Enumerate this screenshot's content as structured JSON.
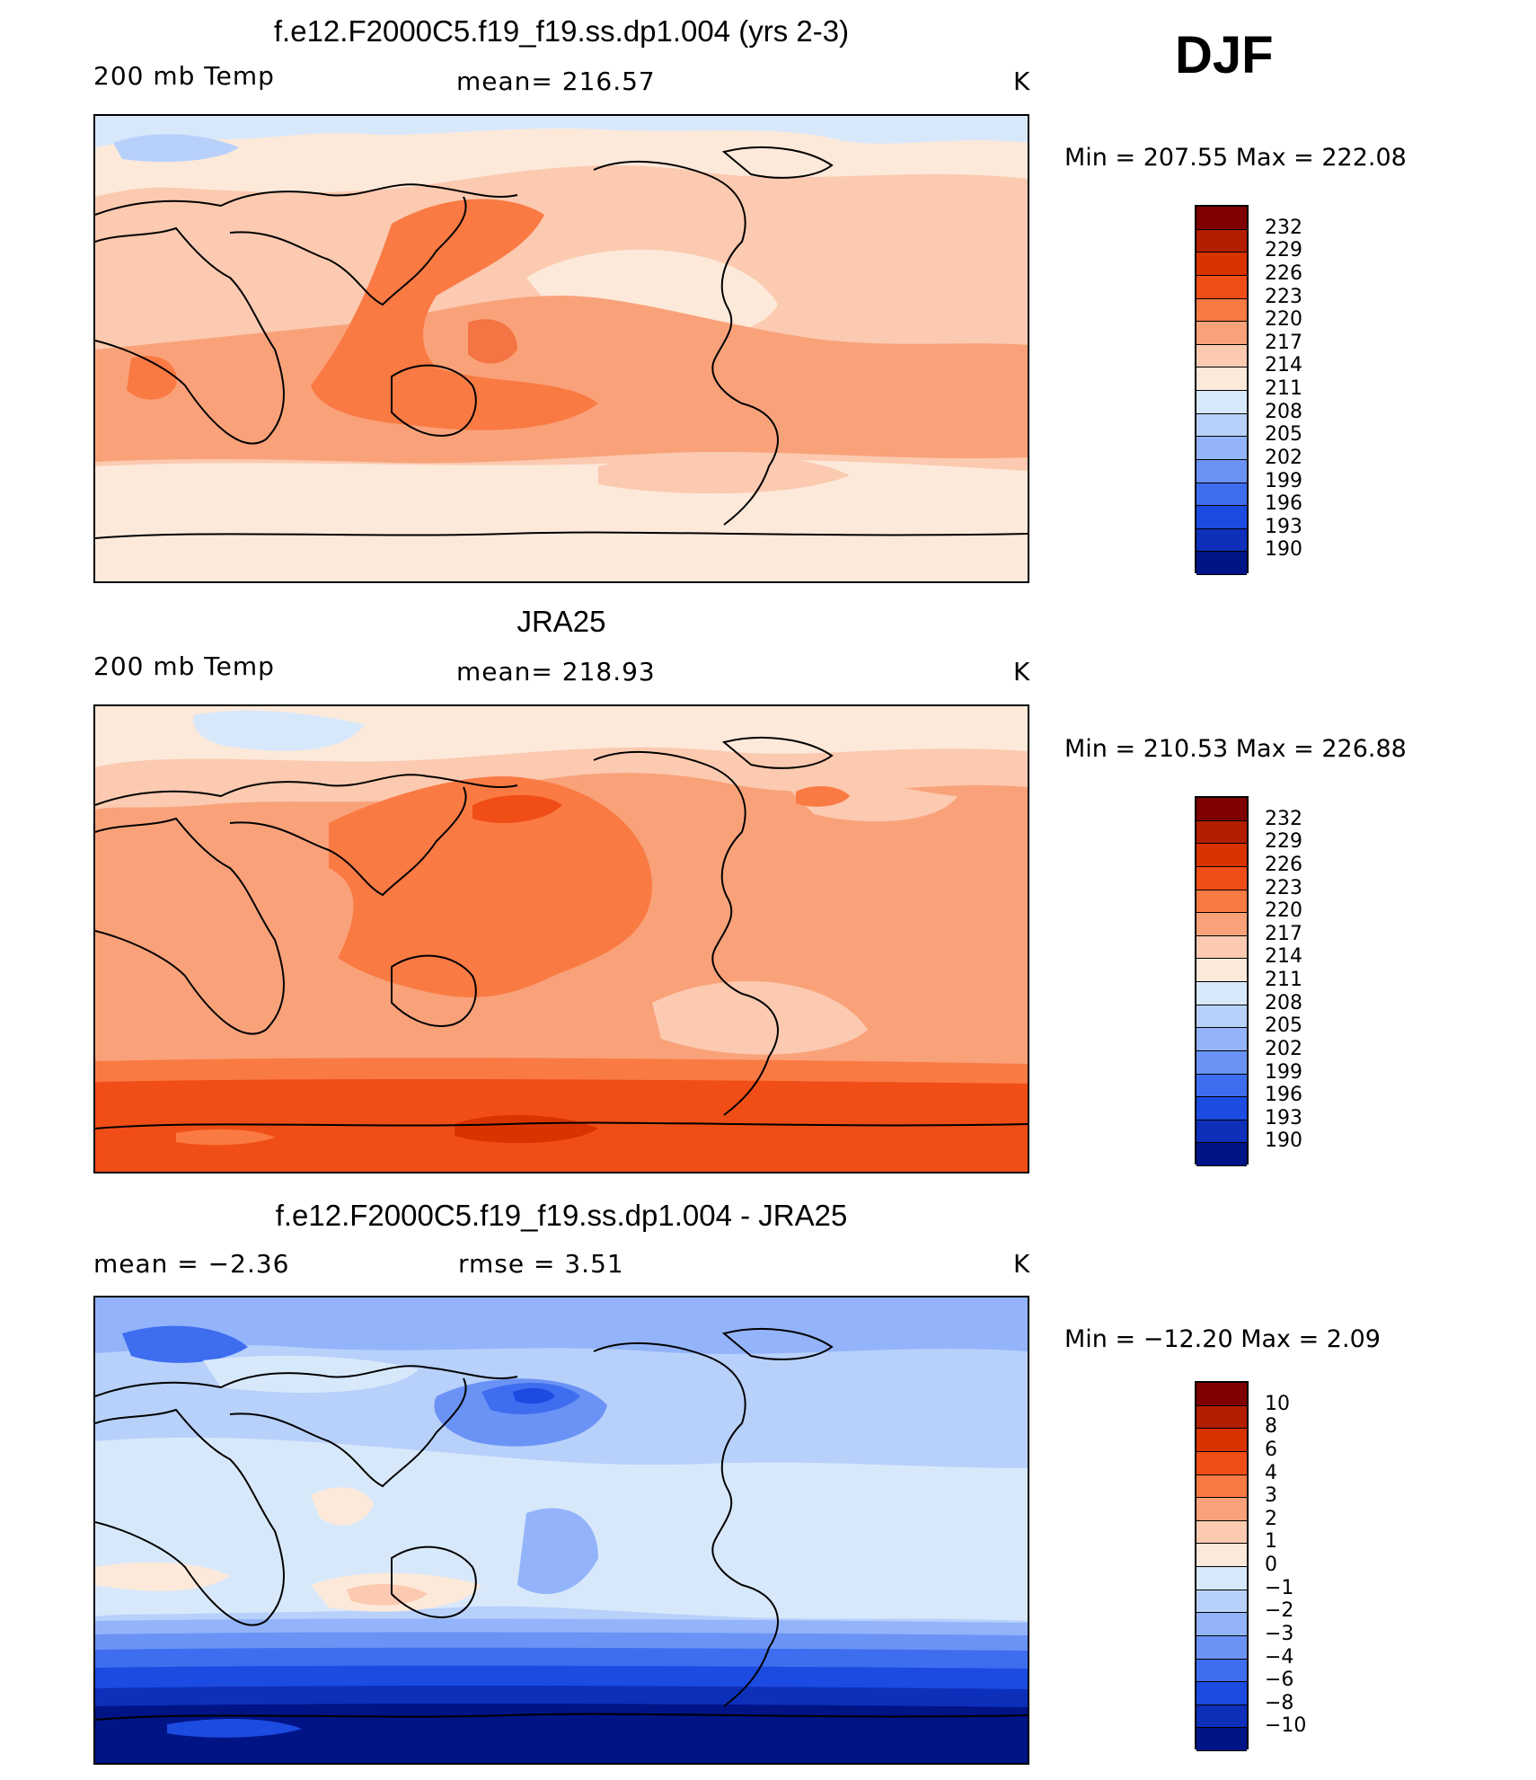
{
  "season": "DJF",
  "panels": [
    {
      "title": "f.e12.F2000C5.f19_f19.ss.dp1.004 (yrs 2-3)",
      "left_label": "200 mb Temp",
      "center_label": "mean=  216.57",
      "unit": "K",
      "minmax": "Min  =  207.55  Max  =  222.08",
      "colorbar_labels": [
        "232",
        "229",
        "226",
        "223",
        "220",
        "217",
        "214",
        "211",
        "208",
        "205",
        "202",
        "199",
        "196",
        "193",
        "190"
      ]
    },
    {
      "title": "JRA25",
      "left_label": "200 mb Temp",
      "center_label": "mean=  218.93",
      "unit": "K",
      "minmax": "Min  =  210.53  Max  =  226.88",
      "colorbar_labels": [
        "232",
        "229",
        "226",
        "223",
        "220",
        "217",
        "214",
        "211",
        "208",
        "205",
        "202",
        "199",
        "196",
        "193",
        "190"
      ]
    },
    {
      "title": "f.e12.F2000C5.f19_f19.ss.dp1.004 - JRA25",
      "left_label": "mean  =     −2.36",
      "center_label": "rmse  =      3.51",
      "unit": "K",
      "minmax": "Min  =  −12.20  Max  =      2.09",
      "colorbar_labels": [
        "10",
        "8",
        "6",
        "4",
        "3",
        "2",
        "1",
        "0",
        "−1",
        "−2",
        "−3",
        "−4",
        "−6",
        "−8",
        "−10"
      ]
    }
  ],
  "palette": [
    "#7f0000",
    "#b21e00",
    "#d93300",
    "#f04e16",
    "#fa7a44",
    "#f9a27a",
    "#fbcab0",
    "#fde9da",
    "#d8e8fb",
    "#b8d1fb",
    "#93b4fa",
    "#6b93f5",
    "#3f6df0",
    "#1b4be0",
    "#0d2fba",
    "#001486"
  ],
  "colors": {
    "c_inner": "#f04e16",
    "c_mid": "#fa7a44",
    "c_light": "#f9a27a",
    "c_pale": "#fbcab0",
    "c_cream": "#fde9da",
    "c_ice": "#d8e8fb",
    "c_skyblue": "#b8d1fb",
    "c_blue1": "#93b4fa",
    "c_blue2": "#6b93f5",
    "c_blue3": "#3f6df0",
    "c_blue4": "#1b4be0",
    "c_blue5": "#0d2fba",
    "c_navy": "#001486"
  }
}
